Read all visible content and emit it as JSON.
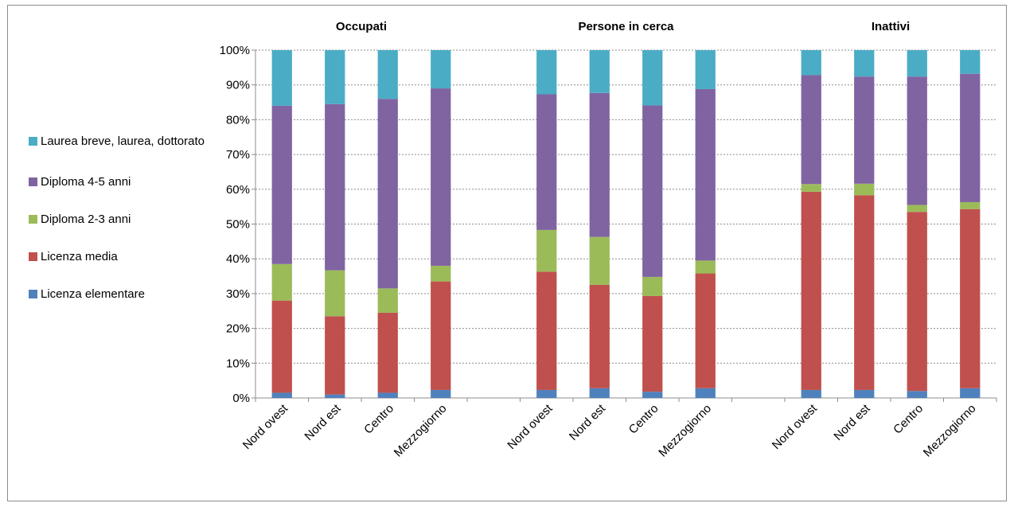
{
  "chart_data": {
    "type": "bar",
    "stacked": true,
    "y_range": [
      0,
      100
    ],
    "y_unit": "%",
    "y_ticks": [
      "0%",
      "10%",
      "20%",
      "30%",
      "40%",
      "50%",
      "60%",
      "70%",
      "80%",
      "90%",
      "100%"
    ],
    "categories": [
      "Nord ovest",
      "Nord est",
      "Centro",
      "Mezzogiorno"
    ],
    "series": [
      {
        "name": "Licenza elementare",
        "color": "#4f81bd"
      },
      {
        "name": "Licenza media",
        "color": "#c0504d"
      },
      {
        "name": "Diploma 2-3 anni",
        "color": "#9bbb59"
      },
      {
        "name": "Diploma 4-5 anni",
        "color": "#8064a2"
      },
      {
        "name": "Laurea breve, laurea, dottorato",
        "color": "#4bacc6"
      }
    ],
    "panels": [
      {
        "title": "Occupati",
        "stacks": [
          [
            1.5,
            26.5,
            10.5,
            45.5,
            16.0
          ],
          [
            1.0,
            22.5,
            13.2,
            47.8,
            15.5
          ],
          [
            1.5,
            23.0,
            7.0,
            54.5,
            14.0
          ],
          [
            2.3,
            31.2,
            4.5,
            51.0,
            11.0
          ]
        ]
      },
      {
        "title": "Persone in cerca",
        "stacks": [
          [
            2.3,
            34.0,
            12.0,
            39.0,
            12.7
          ],
          [
            2.8,
            29.7,
            13.8,
            41.4,
            12.3
          ],
          [
            1.8,
            27.5,
            5.5,
            49.3,
            15.9
          ],
          [
            2.8,
            33.0,
            3.7,
            49.3,
            11.2
          ]
        ]
      },
      {
        "title": "Inattivi",
        "stacks": [
          [
            2.3,
            57.0,
            2.2,
            31.3,
            7.2
          ],
          [
            2.3,
            56.0,
            3.3,
            30.8,
            7.6
          ],
          [
            2.0,
            51.5,
            2.0,
            36.9,
            7.6
          ],
          [
            2.8,
            51.5,
            2.0,
            36.9,
            6.8
          ]
        ]
      }
    ]
  }
}
